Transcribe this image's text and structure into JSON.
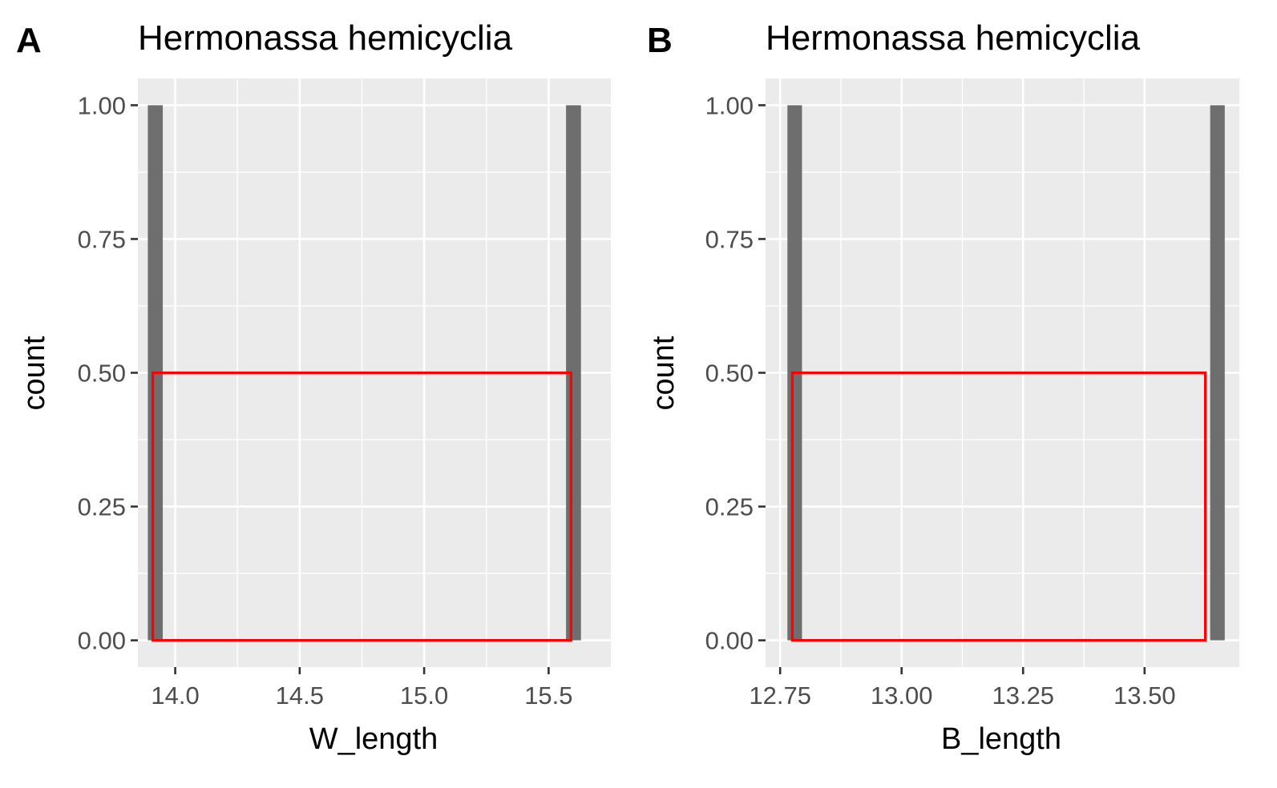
{
  "colors": {
    "panel_background": "#ebebeb",
    "grid_line": "#ffffff",
    "bar_fill": "#6e6e6e",
    "density_outline": "#ff0000",
    "tick_mark": "#333333",
    "tick_label": "#4d4d4d",
    "text": "#000000"
  },
  "chart_data": [
    {
      "type": "bar",
      "panel_label": "A",
      "title": "Hermonassa hemicyclia",
      "xlabel": "W_length",
      "ylabel": "count",
      "xlim": [
        13.85,
        15.75
      ],
      "ylim": [
        -0.05,
        1.05
      ],
      "x_ticks": [
        14.0,
        14.5,
        15.0,
        15.5
      ],
      "x_tick_labels": [
        "14.0",
        "14.5",
        "15.0",
        "15.5"
      ],
      "y_ticks": [
        0,
        0.25,
        0.5,
        0.75,
        1.0
      ],
      "y_tick_labels": [
        "0.00",
        "0.25",
        "0.50",
        "0.75",
        "1.00"
      ],
      "grid": true,
      "bars": [
        {
          "xmin": 13.89,
          "xmax": 13.95,
          "count": 1
        },
        {
          "xmin": 15.57,
          "xmax": 15.63,
          "count": 1
        }
      ],
      "density_box": {
        "xmin": 13.91,
        "xmax": 15.59,
        "ymin": 0,
        "ymax": 0.5
      }
    },
    {
      "type": "bar",
      "panel_label": "B",
      "title": "Hermonassa hemicyclia",
      "xlabel": "B_length",
      "ylabel": "count",
      "xlim": [
        12.72,
        13.695
      ],
      "ylim": [
        -0.05,
        1.05
      ],
      "x_ticks": [
        12.75,
        13.0,
        13.25,
        13.5
      ],
      "x_tick_labels": [
        "12.75",
        "13.00",
        "13.25",
        "13.50"
      ],
      "y_ticks": [
        0,
        0.25,
        0.5,
        0.75,
        1.0
      ],
      "y_tick_labels": [
        "0.00",
        "0.25",
        "0.50",
        "0.75",
        "1.00"
      ],
      "grid": true,
      "bars": [
        {
          "xmin": 12.765,
          "xmax": 12.795,
          "count": 1
        },
        {
          "xmin": 13.635,
          "xmax": 13.665,
          "count": 1
        }
      ],
      "density_box": {
        "xmin": 12.775,
        "xmax": 13.625,
        "ymin": 0,
        "ymax": 0.5
      }
    }
  ]
}
